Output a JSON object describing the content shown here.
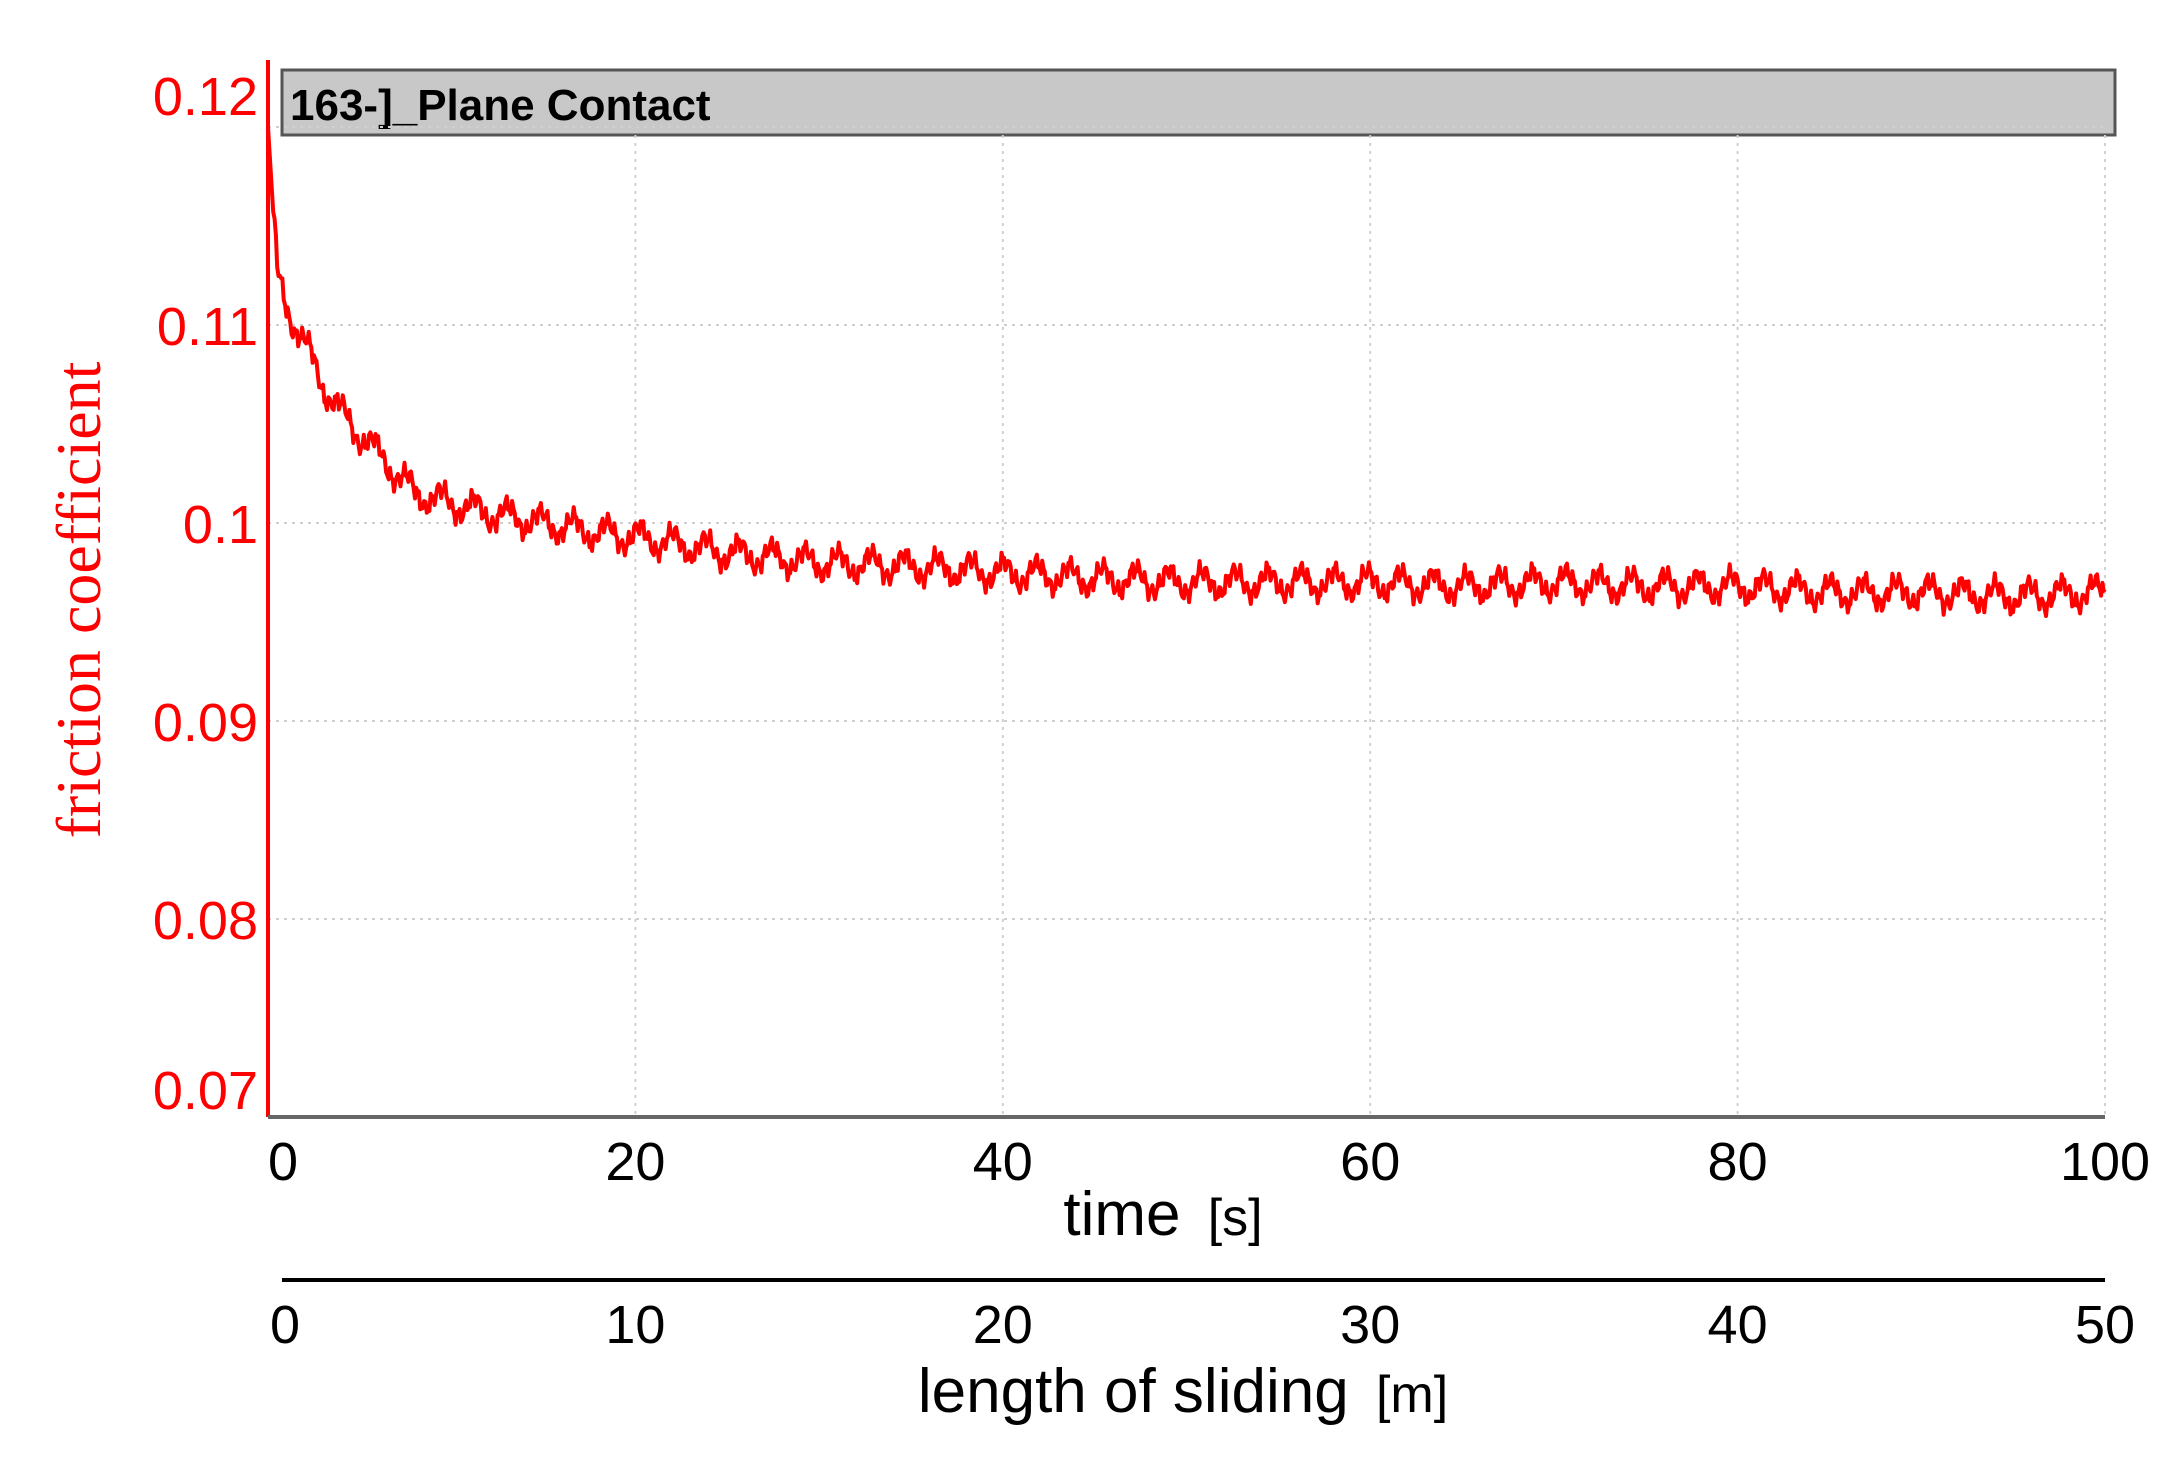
{
  "chart_data": {
    "type": "line",
    "title": "163-]_Plane Contact",
    "ylabel": "friction coefficient",
    "xlabel": {
      "name": "time",
      "unit": "[s]"
    },
    "x2label": {
      "name": "length of sliding",
      "unit": "[m]"
    },
    "xlim": [
      0,
      100
    ],
    "ylim": [
      0.07,
      0.12
    ],
    "x2lim": [
      0,
      50
    ],
    "xticks": [
      "0",
      "20",
      "40",
      "60",
      "80",
      "100"
    ],
    "x2ticks": [
      "0",
      "10",
      "20",
      "30",
      "40",
      "50"
    ],
    "yticks": [
      "0.07",
      "0.08",
      "0.09",
      "0.1",
      "0.11",
      "0.12"
    ],
    "grid": true,
    "line_color": "#ff0000",
    "axis_color": "#ff0000",
    "series": [
      {
        "x": [
          0,
          0.5,
          1,
          2,
          3,
          4,
          5,
          6,
          7,
          8,
          10,
          12,
          15,
          18,
          20,
          25,
          30,
          35,
          40,
          45,
          50,
          55,
          60,
          65,
          70,
          75,
          80,
          85,
          90,
          95,
          100
        ],
        "values": [
          0.12,
          0.1125,
          0.111,
          0.109,
          0.107,
          0.1055,
          0.1045,
          0.1035,
          0.1025,
          0.1015,
          0.101,
          0.1005,
          0.1,
          0.0995,
          0.0993,
          0.0985,
          0.098,
          0.0978,
          0.0975,
          0.0972,
          0.097,
          0.097,
          0.097,
          0.0968,
          0.097,
          0.0968,
          0.0968,
          0.0965,
          0.0965,
          0.0963,
          0.0965
        ]
      }
    ]
  }
}
